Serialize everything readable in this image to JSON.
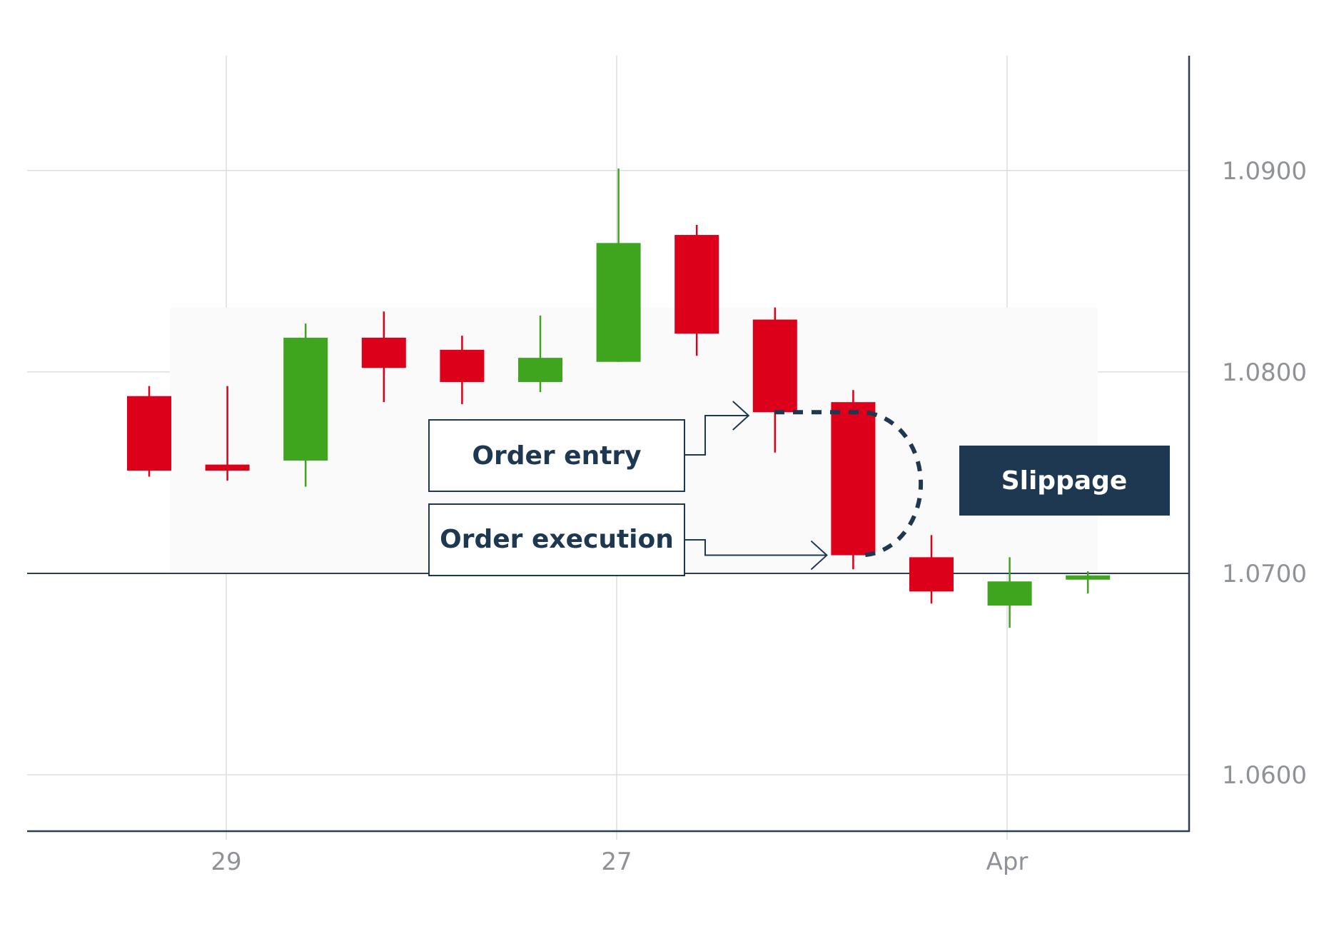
{
  "chart_data": {
    "type": "candlestick",
    "x_ticks": [
      "29",
      "27",
      "Apr"
    ],
    "y_ticks": [
      "1.0900",
      "1.0800",
      "1.0700",
      "1.0600"
    ],
    "y_range": [
      1.0572,
      1.0957
    ],
    "grid": true,
    "candles": [
      {
        "open": 1.0788,
        "high": 1.0793,
        "low": 1.0748,
        "close": 1.0751
      },
      {
        "open": 1.0754,
        "high": 1.0793,
        "low": 1.0746,
        "close": 1.0751
      },
      {
        "open": 1.0756,
        "high": 1.0824,
        "low": 1.0743,
        "close": 1.0817
      },
      {
        "open": 1.0817,
        "high": 1.083,
        "low": 1.0785,
        "close": 1.0802
      },
      {
        "open": 1.0811,
        "high": 1.0818,
        "low": 1.0784,
        "close": 1.0795
      },
      {
        "open": 1.0795,
        "high": 1.0828,
        "low": 1.079,
        "close": 1.0807
      },
      {
        "open": 1.0805,
        "high": 1.0901,
        "low": 1.0805,
        "close": 1.0864
      },
      {
        "open": 1.0868,
        "high": 1.0873,
        "low": 1.0808,
        "close": 1.0819
      },
      {
        "open": 1.0826,
        "high": 1.0832,
        "low": 1.076,
        "close": 1.078
      },
      {
        "open": 1.0785,
        "high": 1.0791,
        "low": 1.0702,
        "close": 1.0709
      },
      {
        "open": 1.0708,
        "high": 1.0719,
        "low": 1.0685,
        "close": 1.0691
      },
      {
        "open": 1.0684,
        "high": 1.0708,
        "low": 1.0673,
        "close": 1.0696
      },
      {
        "open": 1.0697,
        "high": 1.0701,
        "low": 1.069,
        "close": 1.0699
      }
    ],
    "reference_line": 1.07,
    "entry_price": 1.078,
    "execution_price": 1.0709,
    "colors": {
      "up": "#3fa51f",
      "down": "#dc001a",
      "axis": "#2c3e55",
      "grid": "#dddddd",
      "tick_text": "#8f9296",
      "annotation": "#1e3851"
    },
    "annotations": {
      "order_entry": "Order entry",
      "order_execution": "Order execution",
      "slippage": "Slippage"
    }
  }
}
